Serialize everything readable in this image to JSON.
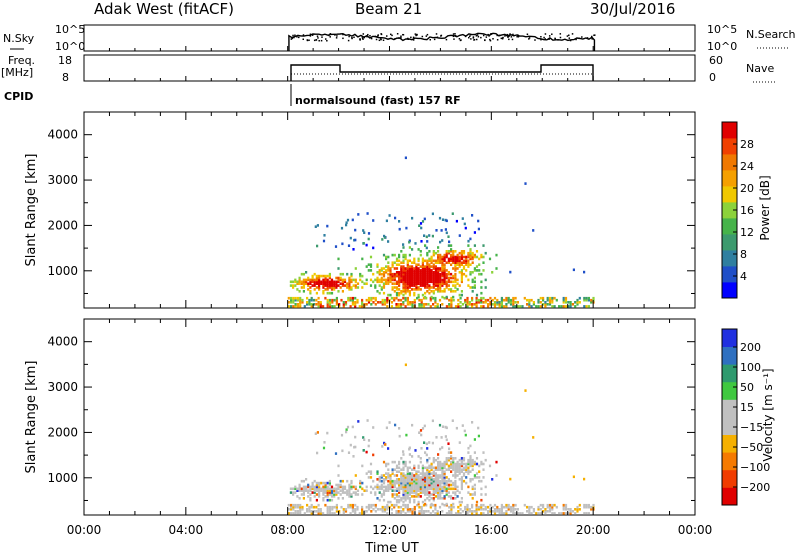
{
  "header": {
    "radar": "Adak West (fitACF)",
    "beam": "Beam 21",
    "date": "30/Jul/2016"
  },
  "status": {
    "nsky_label": "N.Sky",
    "nsearch_label": "N.Search",
    "nsky_ticks": [
      "10^5",
      "10^0"
    ],
    "freq_label": "Freq.",
    "freq_unit": "[MHz]",
    "freq_ticks": [
      "18",
      "8"
    ],
    "nave_label": "Nave",
    "nave_ticks": [
      "60",
      "0"
    ],
    "cpid_label": "CPID",
    "cpid_text": "normalsound (fast) 157 RF"
  },
  "colors": {
    "trace": "#000000",
    "power_scale": [
      "#0000ff",
      "#1f4fc8",
      "#2f7fa0",
      "#3c9a6e",
      "#46b34a",
      "#8cd23a",
      "#f0c800",
      "#f5a000",
      "#f07800",
      "#f04000",
      "#e00000"
    ],
    "velocity_scale": [
      "#e00000",
      "#f03c00",
      "#f57a00",
      "#f5b000",
      "#c0c0c0",
      "#c0c0c0",
      "#40c840",
      "#2f9a6e",
      "#2f70c0",
      "#2030e0"
    ]
  },
  "chart_data": [
    {
      "type": "heatmap",
      "name": "power",
      "ylabel": "Slant Range [km]",
      "ylim": [
        180,
        4500
      ],
      "yticks": [
        "1000",
        "2000",
        "3000",
        "4000"
      ],
      "ytick_values": [
        1000,
        2000,
        3000,
        4000
      ],
      "xlim": [
        0,
        24
      ],
      "colorbar_label": "Power [dB]",
      "colorbar_ticks": [
        "4",
        "8",
        "12",
        "16",
        "20",
        "24",
        "28"
      ],
      "colorbar_range": [
        0,
        32
      ]
    },
    {
      "type": "heatmap",
      "name": "velocity",
      "ylabel": "Slant Range [km]",
      "ylim": [
        180,
        4500
      ],
      "yticks": [
        "1000",
        "2000",
        "3000",
        "4000"
      ],
      "ytick_values": [
        1000,
        2000,
        3000,
        4000
      ],
      "xlim": [
        0,
        24
      ],
      "xlabel": "Time UT",
      "xticks": [
        "00:00",
        "04:00",
        "08:00",
        "12:00",
        "16:00",
        "20:00",
        "00:00"
      ],
      "xtick_values": [
        0,
        4,
        8,
        12,
        16,
        20,
        24
      ],
      "colorbar_label": "Velocity [m s⁻¹]",
      "colorbar_ticks": [
        "200",
        "100",
        "50",
        "15",
        "−15",
        "−50",
        "−100",
        "−200"
      ]
    }
  ]
}
